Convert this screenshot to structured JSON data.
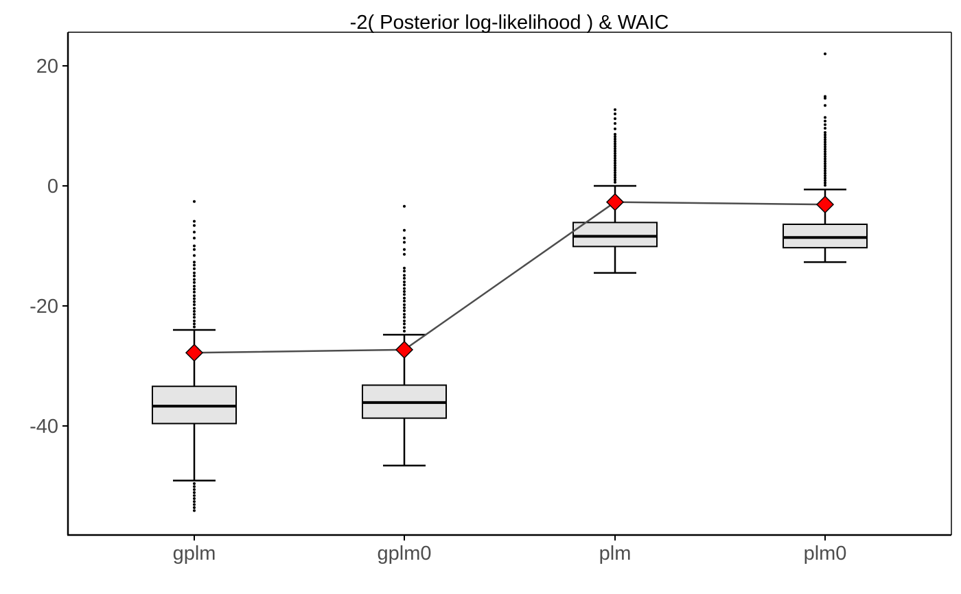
{
  "chart_data": {
    "type": "box",
    "title": "-2( Posterior log-likelihood ) & WAIC",
    "xlabel": "",
    "ylabel": "",
    "categories": [
      "gplm",
      "gplm0",
      "plm",
      "plm0"
    ],
    "y_ticks": [
      20,
      0,
      -20,
      -40
    ],
    "ylim": [
      -58.4,
      25.8
    ],
    "grid": false,
    "boxes": [
      {
        "category": "gplm",
        "q1": -39.6,
        "median": -36.7,
        "q3": -33.4,
        "whisker_low": -49.1,
        "whisker_high": -24.0,
        "outliers_high": [
          -2.6,
          -5.9,
          -6.6,
          -7.7,
          -8.7,
          -10.0,
          -10.6,
          -11.6,
          -12.7,
          -13.2,
          -13.8,
          -14.5,
          -15.0,
          -15.6,
          -16.1,
          -16.7,
          -17.2,
          -17.7,
          -18.3,
          -18.8,
          -19.3,
          -19.8,
          -20.4,
          -20.9,
          -21.4,
          -21.9,
          -22.5,
          -23.0,
          -23.5
        ],
        "outliers_low": [
          -49.6,
          -50.1,
          -50.6,
          -51.1,
          -51.6,
          -52.1,
          -52.6,
          -53.1,
          -53.6,
          -54.1
        ]
      },
      {
        "category": "gplm0",
        "q1": -38.7,
        "median": -36.1,
        "q3": -33.2,
        "whisker_low": -46.6,
        "whisker_high": -24.8,
        "outliers_high": [
          -3.4,
          -7.4,
          -8.7,
          -9.4,
          -10.6,
          -11.4,
          -13.7,
          -14.2,
          -14.9,
          -15.4,
          -16.0,
          -16.5,
          -17.1,
          -17.6,
          -18.1,
          -18.7,
          -19.2,
          -19.8,
          -20.3,
          -20.8,
          -21.4,
          -21.9,
          -22.5,
          -23.0,
          -23.6,
          -24.2
        ]
      },
      {
        "category": "plm",
        "q1": -10.1,
        "median": -8.4,
        "q3": -6.1,
        "whisker_low": -14.5,
        "whisker_high": 0.0,
        "outliers_high": [
          12.7,
          12.0,
          11.2,
          10.4,
          9.5,
          8.6,
          8.2,
          7.8,
          7.4,
          7.0,
          6.6,
          6.2,
          5.8,
          5.4,
          5.0,
          4.6,
          4.2,
          3.8,
          3.4,
          3.0,
          2.6,
          2.2,
          1.8,
          1.4,
          1.0,
          0.6
        ]
      },
      {
        "category": "plm0",
        "q1": -10.3,
        "median": -8.6,
        "q3": -6.4,
        "whisker_low": -12.7,
        "whisker_high": -0.6,
        "outliers_high": [
          22.0,
          14.9,
          14.6,
          13.4,
          11.4,
          10.8,
          10.2,
          9.6,
          8.9,
          8.5,
          8.1,
          7.7,
          7.3,
          6.9,
          6.5,
          6.1,
          5.7,
          5.3,
          4.9,
          4.5,
          4.1,
          3.7,
          3.3,
          2.9,
          2.5,
          2.1,
          1.7,
          1.3,
          0.9,
          0.5,
          0.1
        ]
      }
    ],
    "waic_line": {
      "values": [
        -27.8,
        -27.3,
        -2.7,
        -3.1
      ],
      "marker": "diamond",
      "marker_color": "#ff0000",
      "line_color": "#4d4d4d"
    },
    "colors": {
      "box_fill": "#e5e5e5",
      "box_stroke": "#000000",
      "axis": "#000000",
      "tick_label": "#4d4d4d"
    }
  }
}
